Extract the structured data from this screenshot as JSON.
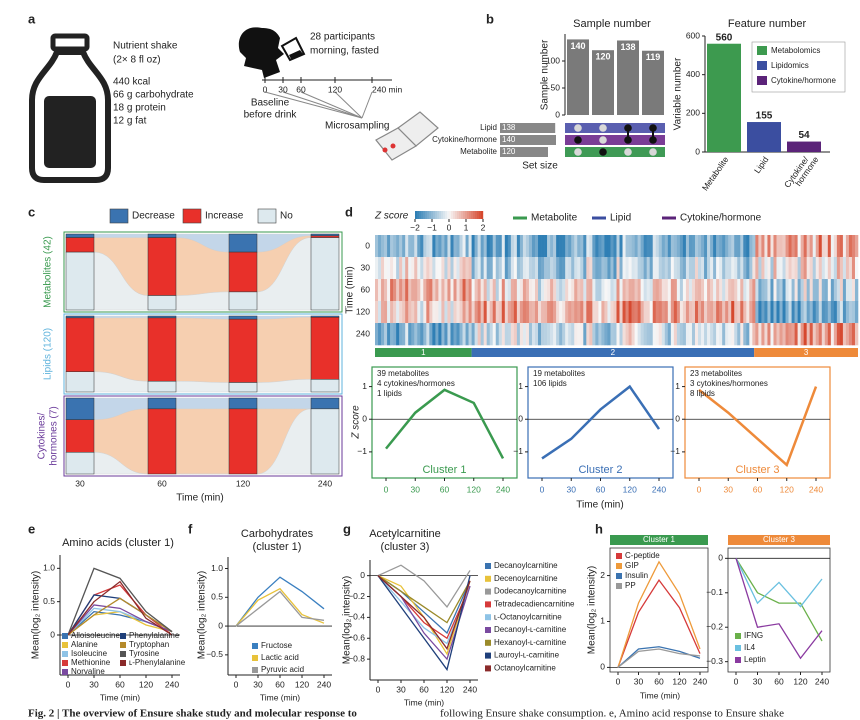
{
  "panel_labels": [
    "a",
    "b",
    "c",
    "d",
    "e",
    "f",
    "g",
    "h"
  ],
  "a": {
    "shake": "Nutrient shake",
    "serving": "(2× 8 fl oz)",
    "nutrition": [
      "440 kcal",
      "66 g carbohydrate",
      "18 g protein",
      "12 g fat"
    ],
    "participants": "28 participants",
    "condition": "morning, fasted",
    "timeline": [
      "0",
      "30",
      "60",
      "120",
      "240 min"
    ],
    "baseline": [
      "Baseline",
      "before drink"
    ],
    "sampling": "Microsampling"
  },
  "b": {
    "sample_number": {
      "title": "Sample number",
      "ylabel": "Sample number",
      "ylim": [
        0,
        150
      ],
      "yticks": [
        0,
        50,
        100
      ],
      "values": [
        140,
        120,
        138,
        119
      ],
      "color": "#7a7a7a",
      "sets": [
        "Lipid",
        "Cytokine/hormone",
        "Metabolite"
      ],
      "set_sizes": [
        138,
        140,
        120
      ],
      "set_colors": [
        "#5a5fb0",
        "#7a3d96",
        "#3f9a55"
      ],
      "membership": [
        [
          false,
          false,
          true,
          true
        ],
        [
          true,
          false,
          true,
          true
        ],
        [
          false,
          true,
          false,
          false
        ]
      ],
      "xlabel": "Set size"
    },
    "feature_number": {
      "title": "Feature number",
      "ylabel": "Variable number",
      "ylim": [
        0,
        600
      ],
      "yticks": [
        0,
        200,
        400,
        600
      ],
      "categories": [
        [
          "Metabolite"
        ],
        [
          "Lipid"
        ],
        [
          "Cytokine/",
          "hormone"
        ]
      ],
      "values": [
        560,
        155,
        54
      ],
      "colors": [
        "#3d9a4f",
        "#3b4ea0",
        "#5b2379"
      ],
      "legend": [
        "Metabolomics",
        "Lipidomics",
        "Cytokine/hormone"
      ]
    }
  },
  "c": {
    "legend": [
      {
        "name": "Decrease",
        "color": "#3a73b0"
      },
      {
        "name": "Increase",
        "color": "#e8302a"
      },
      {
        "name": "No",
        "color": "#dde9ee"
      }
    ],
    "groups": [
      {
        "name": [
          "Metabolites (42)"
        ],
        "color": "#3a9a4f",
        "counts": [
          [
            2,
            8,
            32
          ],
          [
            2,
            32,
            8
          ],
          [
            10,
            22,
            10
          ],
          [
            1,
            1,
            40
          ]
        ]
      },
      {
        "name": [
          "Lipids (120)"
        ],
        "color": "#5fb3dc",
        "counts": [
          [
            3,
            85,
            32
          ],
          [
            3,
            100,
            17
          ],
          [
            5,
            100,
            15
          ],
          [
            2,
            98,
            20
          ]
        ]
      },
      {
        "name": [
          "Cytokines/",
          "hormones (7)"
        ],
        "color": "#6a3a9a",
        "counts": [
          [
            2,
            3,
            2
          ],
          [
            1,
            6,
            0
          ],
          [
            1,
            6,
            0
          ],
          [
            1,
            0,
            6
          ]
        ]
      }
    ],
    "times": [
      "30",
      "60",
      "120",
      "240"
    ],
    "xlabel": "Time (min)"
  },
  "d": {
    "colorbar": {
      "label": "Z score",
      "ticks": [
        {
          "value": -2,
          "label": "−2"
        },
        {
          "value": -1,
          "label": "−1"
        },
        0,
        1,
        2
      ]
    },
    "legend": [
      {
        "name": "Metabolite",
        "color": "#3a9a4f"
      },
      {
        "name": "Lipid",
        "color": "#3b4ea0"
      },
      {
        "name": "Cytokine/hormone",
        "color": "#5b2379"
      }
    ],
    "ylabel": "Time (min)",
    "rows": [
      "0",
      "30",
      "60",
      "120",
      "240"
    ],
    "clusters": [
      {
        "id": "1",
        "label": "Cluster 1",
        "color": "#3a9a4f",
        "lines": [
          "39 metabolites",
          "4 cytokines/hormones",
          "1 lipids"
        ],
        "values": [
          -0.9,
          0.2,
          0.9,
          0.5,
          -1.2
        ]
      },
      {
        "id": "2",
        "label": "Cluster 2",
        "color": "#3a6fb5",
        "lines": [
          "19 metabolites",
          "106 lipids"
        ],
        "values": [
          -1.2,
          -0.6,
          0.3,
          1.0,
          -0.3
        ]
      },
      {
        "id": "3",
        "label": "Cluster 3",
        "color": "#ee8a3a",
        "lines": [
          "23 metabolites",
          "3 cytokines/hormones",
          "8 lipids"
        ],
        "values": [
          0.9,
          0.2,
          -0.6,
          -1.4,
          1.0
        ]
      }
    ],
    "cluster_ylabel": "Z score",
    "ylim": [
      -1.8,
      1.6
    ],
    "yticks": [
      {
        "value": -1,
        "label": "−1"
      },
      0,
      1
    ],
    "xticks": [
      "0",
      "30",
      "60",
      "120",
      "240"
    ],
    "xlabel": "Time (min)"
  },
  "e": {
    "title": [
      "Amino acids (cluster 1)"
    ],
    "ylabel": "Mean(log₂ intensity)",
    "xlabel": "Time (min)",
    "categories": [
      "0",
      "30",
      "60",
      "120",
      "240"
    ],
    "ylim": [
      -0.6,
      1.2
    ],
    "yticks": [
      0,
      0.5,
      {
        "value": 1,
        "label": "1.0"
      }
    ],
    "series": [
      {
        "name": "Alloisoleucine",
        "color": "#3a73b0",
        "values": [
          0,
          0.35,
          0.3,
          0.2,
          0.05
        ]
      },
      {
        "name": "Alanine",
        "color": "#e8c23a",
        "values": [
          0,
          0.3,
          0.35,
          0.15,
          0.05
        ]
      },
      {
        "name": "Isoleucine",
        "color": "#8ec3e6",
        "values": [
          0,
          0.4,
          0.35,
          0.2,
          0.05
        ]
      },
      {
        "name": "Methionine",
        "color": "#d63a3a",
        "values": [
          0,
          0.6,
          0.75,
          0.3,
          0
        ]
      },
      {
        "name": "Norvaline",
        "color": "#7a4aa0",
        "values": [
          0,
          0.45,
          0.4,
          0.2,
          0.05
        ]
      },
      {
        "name": "Phenylalanine",
        "color": "#1f3f7a",
        "values": [
          0,
          0.6,
          0.55,
          0.3,
          0.05
        ]
      },
      {
        "name": "Tryptophan",
        "color": "#b58a2a",
        "values": [
          0,
          0.3,
          0.55,
          0.3,
          0.05
        ]
      },
      {
        "name": "Tyrosine",
        "color": "#555555",
        "values": [
          0,
          1.0,
          0.85,
          0.35,
          0.05
        ]
      },
      {
        "name": "ʟ-Phenylalanine",
        "color": "#8a2a2a",
        "values": [
          0,
          0.5,
          0.8,
          0.25,
          0
        ]
      }
    ]
  },
  "f": {
    "title": [
      "Carbohydrates",
      "(cluster 1)"
    ],
    "ylabel": "Mean(log₂ intensity)",
    "xlabel": "Time (min)",
    "categories": [
      "0",
      "30",
      "60",
      "120",
      "240"
    ],
    "ylim": [
      -0.85,
      1.2
    ],
    "yticks": [
      {
        "value": -0.5,
        "label": "−0.5"
      },
      0,
      0.5,
      {
        "value": 1,
        "label": "1.0"
      }
    ],
    "series": [
      {
        "name": "Fructose",
        "color": "#3a7fc0",
        "values": [
          0,
          0.5,
          0.85,
          0.6,
          0.3
        ]
      },
      {
        "name": "Lactic acid",
        "color": "#e8c23a",
        "values": [
          0,
          0.45,
          0.65,
          0.2,
          0.05
        ]
      },
      {
        "name": "Pyruvic acid",
        "color": "#999999",
        "values": [
          0,
          0.3,
          0.6,
          0.15,
          0.1
        ]
      }
    ]
  },
  "g": {
    "title": [
      "Acetylcarnitine",
      "(cluster 3)"
    ],
    "ylabel": "Mean(log₂ intensity)",
    "xlabel": "Time (min)",
    "categories": [
      "0",
      "30",
      "60",
      "120",
      "240"
    ],
    "ylim": [
      -1.0,
      0.15
    ],
    "yticks": [
      {
        "value": -0.8,
        "label": "−0.8"
      },
      {
        "value": -0.6,
        "label": "−0.6"
      },
      {
        "value": -0.4,
        "label": "−0.4"
      },
      {
        "value": -0.2,
        "label": "−0.2"
      },
      0
    ],
    "series": [
      {
        "name": "Decanoylcarnitine",
        "color": "#3a73b0",
        "values": [
          0,
          -0.15,
          -0.35,
          -0.55,
          -0.05
        ]
      },
      {
        "name": "Decenoylcarnitine",
        "color": "#e8c23a",
        "values": [
          0,
          -0.1,
          -0.4,
          -0.75,
          -0.05
        ]
      },
      {
        "name": "Dodecanoylcarnitine",
        "color": "#999999",
        "values": [
          0,
          0.1,
          -0.05,
          -0.3,
          0.05
        ]
      },
      {
        "name": "Tetradecadiencarnitine",
        "color": "#d63a3a",
        "values": [
          0,
          -0.2,
          -0.45,
          -0.6,
          -0.1
        ]
      },
      {
        "name": "ʟ-Octanoylcarnitine",
        "color": "#8ec3e6",
        "values": [
          0,
          -0.25,
          -0.5,
          -0.65,
          -0.1
        ]
      },
      {
        "name": "Decanoyl-ʟ-carnitine",
        "color": "#7a4aa0",
        "values": [
          0,
          -0.2,
          -0.55,
          -0.8,
          -0.1
        ]
      },
      {
        "name": "Hexanoyl-ʟ-carnitine",
        "color": "#9a8a2a",
        "values": [
          0,
          -0.15,
          -0.3,
          -0.45,
          -0.05
        ]
      },
      {
        "name": "Lauroyl-ʟ-carnitine",
        "color": "#1f3f7a",
        "values": [
          0,
          -0.3,
          -0.6,
          -0.9,
          0
        ]
      },
      {
        "name": "Octanoylcarnitine",
        "color": "#8a2a2a",
        "values": [
          0,
          -0.2,
          -0.4,
          -0.7,
          -0.05
        ]
      }
    ]
  },
  "h": {
    "ylabel": "Mean(log₂ intensity)",
    "xlabel": "Time (min)",
    "categories": [
      "0",
      "30",
      "60",
      "120",
      "240"
    ],
    "panels": [
      {
        "header": "Cluster 1",
        "color": "#3a9a4f",
        "ylim": [
          -0.1,
          2.6
        ],
        "yticks": [
          0,
          1,
          2
        ],
        "series": [
          {
            "name": "C-peptide",
            "color": "#d63a3a",
            "values": [
              0,
              1.2,
              1.9,
              1.3,
              0.3
            ]
          },
          {
            "name": "GIP",
            "color": "#ee9a3a",
            "values": [
              0,
              1.4,
              2.3,
              1.6,
              0.4
            ]
          },
          {
            "name": "Insulin",
            "color": "#3a73b0",
            "values": [
              0,
              0.4,
              0.45,
              0.35,
              0.2
            ]
          },
          {
            "name": "PP",
            "color": "#999999",
            "values": [
              0,
              0.35,
              0.4,
              0.3,
              0.25
            ]
          }
        ]
      },
      {
        "header": "Cluster 3",
        "color": "#ee8a3a",
        "ylim": [
          -0.33,
          0.03
        ],
        "yticks": [
          {
            "value": -0.3,
            "label": "−0.3"
          },
          {
            "value": -0.2,
            "label": "−0.2"
          },
          {
            "value": -0.1,
            "label": "−0.1"
          },
          0
        ],
        "series": [
          {
            "name": "IFNG",
            "color": "#6ab04a",
            "values": [
              0,
              -0.1,
              -0.13,
              -0.13,
              -0.24
            ]
          },
          {
            "name": "IL4",
            "color": "#6ac0e0",
            "values": [
              0,
              -0.13,
              -0.07,
              -0.14,
              -0.06
            ]
          },
          {
            "name": "Leptin",
            "color": "#8a3aa0",
            "values": [
              0,
              -0.2,
              -0.19,
              -0.29,
              -0.21
            ]
          }
        ]
      }
    ]
  },
  "caption": [
    "Fig. 2 | The overview of Ensure shake study and molecular response to",
    "following Ensure shake consumption. e, Amino acid response to Ensure shake"
  ]
}
